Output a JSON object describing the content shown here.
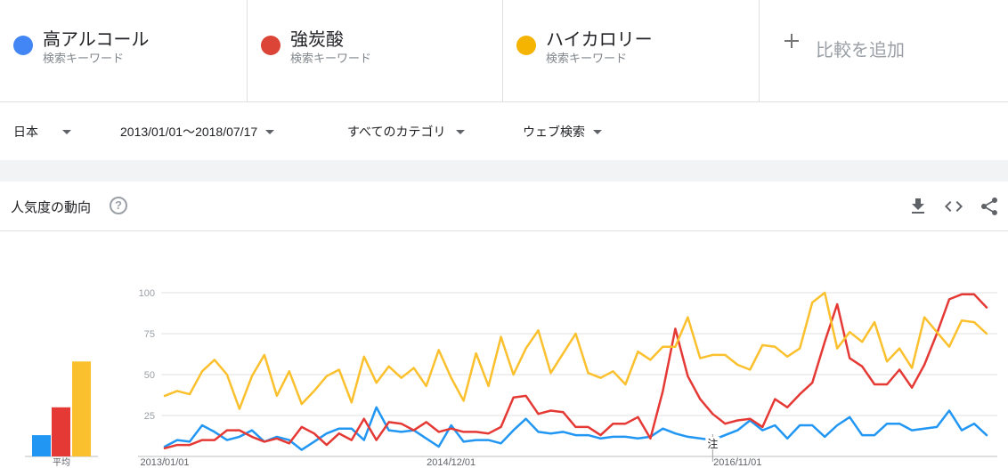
{
  "terms": [
    {
      "name": "高アルコール",
      "sub": "検索キーワード",
      "color": "#4285f4"
    },
    {
      "name": "強炭酸",
      "sub": "検索キーワード",
      "color": "#db4437"
    },
    {
      "name": "ハイカロリー",
      "sub": "検索キーワード",
      "color": "#f4b400"
    }
  ],
  "add_compare": "比較を追加",
  "filters": {
    "region": "日本",
    "date_range": "2013/01/01～2018/07/17",
    "category": "すべてのカテゴリ",
    "property": "ウェブ検索"
  },
  "card": {
    "title": "人気度の動向",
    "help": "?"
  },
  "icons": [
    "download-icon",
    "embed-icon",
    "share-icon",
    "help-icon",
    "add-icon"
  ],
  "chart_data": {
    "type": "line",
    "ylim": [
      0,
      100
    ],
    "yticks": [
      "100",
      "75",
      "50",
      "25"
    ],
    "x_tick_labels": [
      "2013/01/01",
      "2014/12/01",
      "2016/11/01"
    ],
    "note_marker": "注",
    "note_index": 44,
    "average_label": "平均",
    "average_bars": [
      13,
      30,
      58
    ],
    "colors": [
      "#2196f3",
      "#e53935",
      "#fbc02d"
    ],
    "series": [
      {
        "values": [
          6,
          10,
          9,
          19,
          15,
          10,
          12,
          16,
          9,
          12,
          10,
          4,
          9,
          14,
          17,
          17,
          10,
          30,
          16,
          15,
          16,
          11,
          6,
          19,
          9,
          10,
          10,
          8,
          16,
          23,
          15,
          14,
          15,
          13,
          13,
          11,
          12,
          12,
          11,
          12,
          17,
          14,
          12,
          11,
          10,
          13,
          16,
          22,
          16,
          19,
          11,
          19,
          19,
          12,
          19,
          24,
          13,
          13,
          20,
          20,
          16,
          17,
          18,
          28,
          16,
          20,
          13
        ]
      },
      {
        "values": [
          5,
          7,
          7,
          10,
          10,
          16,
          16,
          12,
          9,
          11,
          8,
          18,
          14,
          7,
          14,
          10,
          23,
          10,
          21,
          20,
          16,
          21,
          15,
          17,
          15,
          15,
          14,
          18,
          36,
          37,
          26,
          28,
          27,
          18,
          18,
          13,
          20,
          20,
          24,
          11,
          40,
          78,
          49,
          35,
          26,
          20,
          22,
          23,
          18,
          35,
          30,
          38,
          45,
          70,
          93,
          60,
          55,
          44,
          44,
          53,
          42,
          56,
          75,
          96,
          99,
          99,
          91
        ]
      },
      {
        "values": [
          37,
          40,
          38,
          52,
          59,
          50,
          29,
          49,
          62,
          37,
          52,
          32,
          40,
          49,
          53,
          33,
          61,
          45,
          55,
          48,
          54,
          43,
          65,
          48,
          34,
          63,
          43,
          73,
          50,
          66,
          77,
          51,
          63,
          75,
          51,
          48,
          52,
          44,
          64,
          59,
          67,
          67,
          85,
          60,
          62,
          62,
          56,
          53,
          68,
          67,
          61,
          66,
          94,
          100,
          66,
          76,
          70,
          82,
          58,
          66,
          54,
          85,
          76,
          67,
          83,
          82,
          75
        ]
      }
    ]
  }
}
